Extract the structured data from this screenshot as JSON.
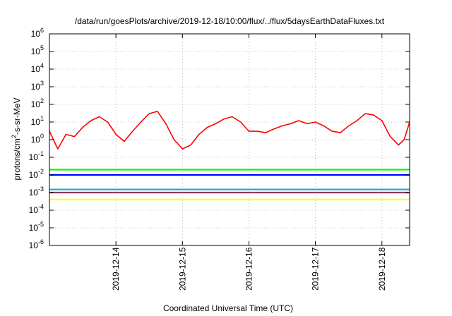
{
  "chart_data": {
    "type": "line",
    "title": "/data/run/goesPlots/archive/2019-12-18/10:00/flux/../flux/5daysEarthDataFluxes.txt",
    "xlabel": "Coordinated Universal Time (UTC)",
    "ylabel": {
      "base": "protons/cm",
      "sup": "2",
      "rest": "-s-sr-MeV"
    },
    "yscale": "log",
    "ylim": [
      1e-06,
      1000000.0
    ],
    "xlim": [
      "2019-12-13 00:00",
      "2019-12-18 10:00"
    ],
    "grid": true,
    "x_ticks": [
      "2019-12-14",
      "2019-12-15",
      "2019-12-16",
      "2019-12-17",
      "2019-12-18"
    ],
    "y_ticks": [
      {
        "value": 1e-06,
        "base": "10",
        "exp": "-6"
      },
      {
        "value": 1e-05,
        "base": "10",
        "exp": "-5"
      },
      {
        "value": 0.0001,
        "base": "10",
        "exp": "-4"
      },
      {
        "value": 0.001,
        "base": "10",
        "exp": "-3"
      },
      {
        "value": 0.01,
        "base": "10",
        "exp": "-2"
      },
      {
        "value": 0.1,
        "base": "10",
        "exp": "-1"
      },
      {
        "value": 1,
        "base": "10",
        "exp": "0"
      },
      {
        "value": 10,
        "base": "10",
        "exp": "1"
      },
      {
        "value": 100,
        "base": "10",
        "exp": "2"
      },
      {
        "value": 1000,
        "base": "10",
        "exp": "3"
      },
      {
        "value": 10000,
        "base": "10",
        "exp": "4"
      },
      {
        "value": 100000,
        "base": "10",
        "exp": "5"
      },
      {
        "value": 1000000,
        "base": "10",
        "exp": "6"
      }
    ],
    "series": [
      {
        "color": "#ff0000",
        "x": [
          "2019-12-13 00:00",
          "2019-12-13 03:00",
          "2019-12-13 06:00",
          "2019-12-13 09:00",
          "2019-12-13 12:00",
          "2019-12-13 15:00",
          "2019-12-13 18:00",
          "2019-12-13 21:00",
          "2019-12-14 00:00",
          "2019-12-14 03:00",
          "2019-12-14 06:00",
          "2019-12-14 09:00",
          "2019-12-14 12:00",
          "2019-12-14 15:00",
          "2019-12-14 18:00",
          "2019-12-14 21:00",
          "2019-12-15 00:00",
          "2019-12-15 03:00",
          "2019-12-15 06:00",
          "2019-12-15 09:00",
          "2019-12-15 12:00",
          "2019-12-15 15:00",
          "2019-12-15 18:00",
          "2019-12-15 21:00",
          "2019-12-16 00:00",
          "2019-12-16 03:00",
          "2019-12-16 06:00",
          "2019-12-16 09:00",
          "2019-12-16 12:00",
          "2019-12-16 15:00",
          "2019-12-16 18:00",
          "2019-12-16 21:00",
          "2019-12-17 00:00",
          "2019-12-17 03:00",
          "2019-12-17 06:00",
          "2019-12-17 09:00",
          "2019-12-17 12:00",
          "2019-12-17 15:00",
          "2019-12-17 18:00",
          "2019-12-17 21:00",
          "2019-12-18 00:00",
          "2019-12-18 03:00",
          "2019-12-18 06:00",
          "2019-12-18 08:00",
          "2019-12-18 10:00"
        ],
        "values": [
          3,
          0.3,
          2,
          1.5,
          5,
          12,
          20,
          10,
          2,
          0.8,
          3,
          10,
          30,
          40,
          8,
          1,
          0.3,
          0.5,
          2,
          5,
          8,
          15,
          20,
          10,
          3,
          3,
          2.5,
          4,
          6,
          8,
          12,
          8,
          10,
          6,
          3,
          2.5,
          6,
          12,
          30,
          25,
          12,
          1.5,
          0.5,
          1,
          10
        ]
      },
      {
        "color": "#00ff00",
        "x": [
          "2019-12-13 00:00",
          "2019-12-14 00:00",
          "2019-12-15 00:00",
          "2019-12-16 00:00",
          "2019-12-17 00:00",
          "2019-12-18 00:00",
          "2019-12-18 10:00"
        ],
        "values": [
          0.02,
          0.02,
          0.02,
          0.02,
          0.02,
          0.02,
          0.02
        ]
      },
      {
        "color": "#0000ff",
        "x": [
          "2019-12-13 00:00",
          "2019-12-14 00:00",
          "2019-12-15 00:00",
          "2019-12-16 00:00",
          "2019-12-17 00:00",
          "2019-12-18 00:00",
          "2019-12-18 10:00"
        ],
        "values": [
          0.01,
          0.01,
          0.01,
          0.01,
          0.01,
          0.01,
          0.01
        ]
      },
      {
        "color": "#2aa7c9",
        "x": [
          "2019-12-13 00:00",
          "2019-12-14 00:00",
          "2019-12-15 00:00",
          "2019-12-16 00:00",
          "2019-12-17 00:00",
          "2019-12-18 00:00",
          "2019-12-18 10:00"
        ],
        "values": [
          0.0015,
          0.0015,
          0.0015,
          0.0015,
          0.0015,
          0.0015,
          0.0015
        ]
      },
      {
        "color": "#ffff00",
        "x": [
          "2019-12-13 00:00",
          "2019-12-14 00:00",
          "2019-12-15 00:00",
          "2019-12-16 00:00",
          "2019-12-17 00:00",
          "2019-12-18 00:00",
          "2019-12-18 10:00"
        ],
        "values": [
          0.0004,
          0.0004,
          0.0004,
          0.0004,
          0.0004,
          0.0004,
          0.0004
        ]
      },
      {
        "color": "#8b3a62",
        "x": [
          "2019-12-13 00:00",
          "2019-12-14 00:00",
          "2019-12-15 00:00",
          "2019-12-16 00:00",
          "2019-12-17 00:00",
          "2019-12-18 00:00",
          "2019-12-18 10:00"
        ],
        "values": [
          0.001,
          0.001,
          0.001,
          0.001,
          0.001,
          0.001,
          0.001
        ]
      }
    ]
  }
}
